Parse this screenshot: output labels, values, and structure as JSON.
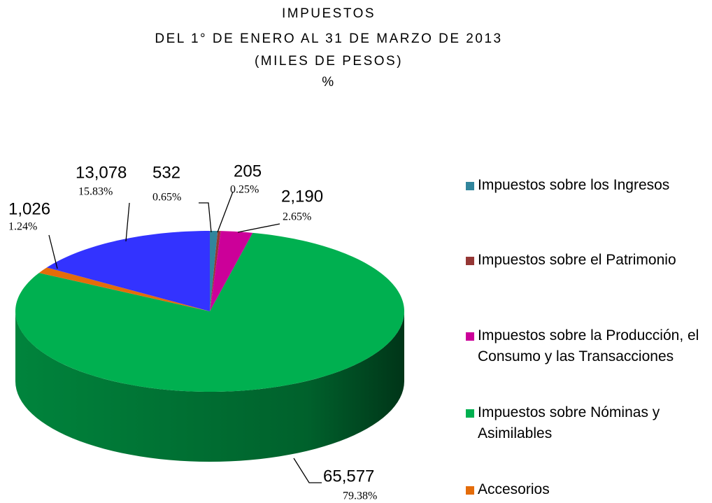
{
  "chart_data": {
    "type": "pie",
    "title": [
      "IMPUESTOS",
      "DEL 1° DE ENERO AL 31 DE MARZO DE 2013",
      "(MILES DE PESOS)",
      "%"
    ],
    "categories": [
      "Impuestos sobre los Ingresos",
      "Impuestos sobre el Patrimonio",
      "Impuestos sobre la Producción, el Consumo y las Transacciones",
      "Impuestos sobre Nóminas y Asimilables",
      "Accesorios",
      null
    ],
    "values": [
      532,
      205,
      2190,
      65577,
      1026,
      13078
    ],
    "value_labels": [
      "532",
      "205",
      "2,190",
      "65,577",
      "1,026",
      "13,078"
    ],
    "percent_labels": [
      "0.65%",
      "0.25%",
      "2.65%",
      "79.38%",
      "1.24%",
      "15.83%"
    ],
    "colors": [
      "#31859c",
      "#953735",
      "#cc0099",
      "#00b050",
      "#e46c0a",
      "#3333ff"
    ],
    "legend": "right"
  }
}
